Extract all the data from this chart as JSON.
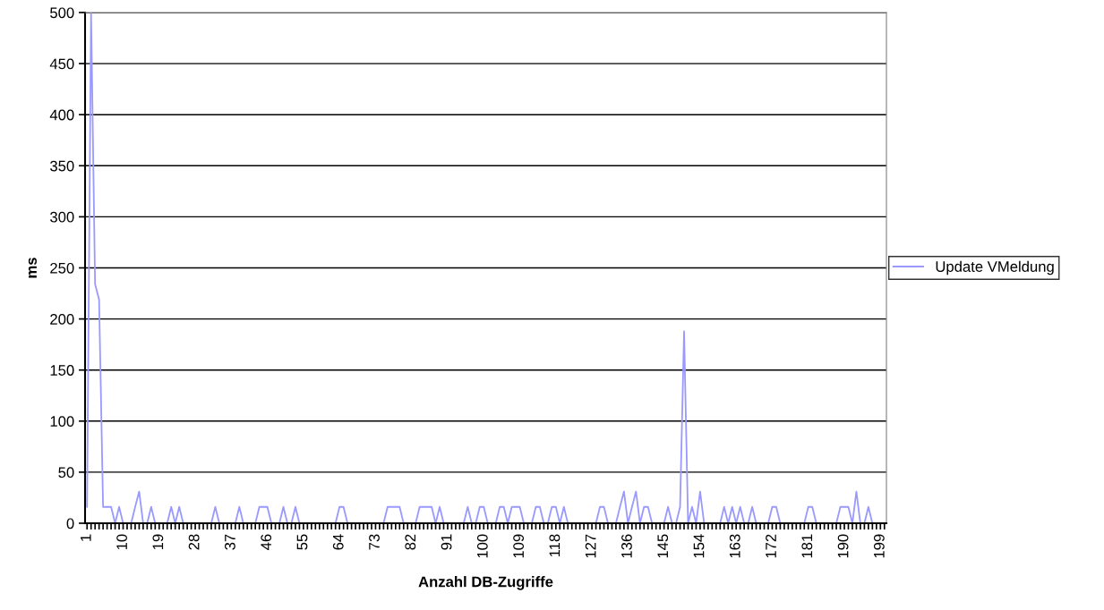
{
  "chart_data": {
    "type": "line",
    "xlabel": "Anzahl DB-Zugriffe",
    "ylabel": "ms",
    "categories": [
      "1",
      null,
      null,
      null,
      null,
      null,
      null,
      null,
      null,
      "10",
      null,
      null,
      null,
      null,
      null,
      null,
      null,
      null,
      "19",
      null,
      null,
      null,
      null,
      null,
      null,
      null,
      null,
      "28",
      null,
      null,
      null,
      null,
      null,
      null,
      null,
      null,
      "37",
      null,
      null,
      null,
      null,
      null,
      null,
      null,
      null,
      "46",
      null,
      null,
      null,
      null,
      null,
      null,
      null,
      null,
      "55",
      null,
      null,
      null,
      null,
      null,
      null,
      null,
      null,
      "64",
      null,
      null,
      null,
      null,
      null,
      null,
      null,
      null,
      "73",
      null,
      null,
      null,
      null,
      null,
      null,
      null,
      null,
      "82",
      null,
      null,
      null,
      null,
      null,
      null,
      null,
      null,
      "91",
      null,
      null,
      null,
      null,
      null,
      null,
      null,
      null,
      "100",
      null,
      null,
      null,
      null,
      null,
      null,
      null,
      null,
      "109",
      null,
      null,
      null,
      null,
      null,
      null,
      null,
      null,
      "118",
      null,
      null,
      null,
      null,
      null,
      null,
      null,
      null,
      "127",
      null,
      null,
      null,
      null,
      null,
      null,
      null,
      null,
      "136",
      null,
      null,
      null,
      null,
      null,
      null,
      null,
      null,
      "145",
      null,
      null,
      null,
      null,
      null,
      null,
      null,
      null,
      "154",
      null,
      null,
      null,
      null,
      null,
      null,
      null,
      null,
      "163",
      null,
      null,
      null,
      null,
      null,
      null,
      null,
      null,
      "172",
      null,
      null,
      null,
      null,
      null,
      null,
      null,
      null,
      "181",
      null,
      null,
      null,
      null,
      null,
      null,
      null,
      null,
      "190",
      null,
      null,
      null,
      null,
      null,
      null,
      null,
      null,
      "199",
      null
    ],
    "series": [
      {
        "name": "Update VMeldung",
        "color": "#9999ff",
        "values": [
          16,
          500,
          234,
          219,
          16,
          16,
          16,
          0,
          16,
          0,
          0,
          0,
          16,
          31,
          0,
          0,
          16,
          0,
          0,
          0,
          0,
          16,
          0,
          16,
          0,
          0,
          0,
          0,
          0,
          0,
          0,
          0,
          16,
          0,
          0,
          0,
          0,
          0,
          16,
          0,
          0,
          0,
          0,
          16,
          16,
          16,
          0,
          0,
          0,
          16,
          0,
          0,
          16,
          0,
          0,
          0,
          0,
          0,
          0,
          0,
          0,
          0,
          0,
          16,
          16,
          0,
          0,
          0,
          0,
          0,
          0,
          0,
          0,
          0,
          0,
          16,
          16,
          16,
          16,
          0,
          0,
          0,
          0,
          16,
          16,
          16,
          16,
          0,
          16,
          0,
          0,
          0,
          0,
          0,
          0,
          16,
          0,
          0,
          16,
          16,
          0,
          0,
          0,
          16,
          16,
          0,
          16,
          16,
          16,
          0,
          0,
          0,
          16,
          16,
          0,
          0,
          16,
          16,
          0,
          16,
          0,
          0,
          0,
          0,
          0,
          0,
          0,
          0,
          16,
          16,
          0,
          0,
          0,
          16,
          31,
          0,
          16,
          31,
          0,
          16,
          16,
          0,
          0,
          0,
          0,
          16,
          0,
          0,
          16,
          188,
          0,
          16,
          0,
          31,
          0,
          0,
          0,
          0,
          0,
          16,
          0,
          16,
          0,
          16,
          0,
          0,
          16,
          0,
          0,
          0,
          0,
          16,
          16,
          0,
          0,
          0,
          0,
          0,
          0,
          0,
          16,
          16,
          0,
          0,
          0,
          0,
          0,
          0,
          16,
          16,
          16,
          0,
          31,
          0,
          0,
          16,
          0,
          null,
          null,
          null
        ]
      }
    ],
    "ylim": [
      0,
      500
    ],
    "yticks": [
      0,
      50,
      100,
      150,
      200,
      250,
      300,
      350,
      400,
      450,
      500
    ],
    "grid": "y",
    "legend": "right",
    "marker": "none",
    "line_style": "solid"
  }
}
